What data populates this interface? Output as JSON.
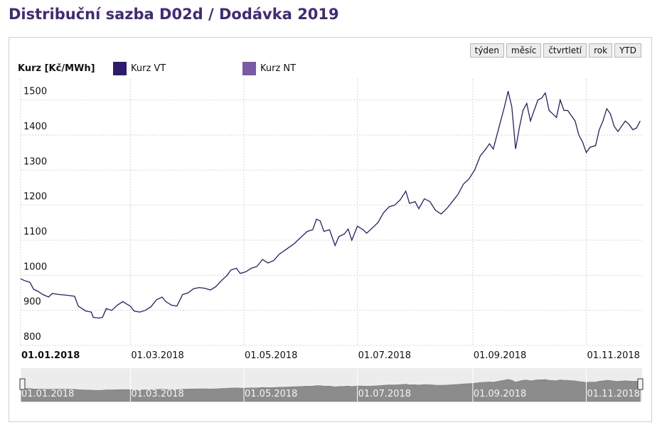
{
  "page": {
    "title": "Distribuční sazba D02d / Dodávka 2019"
  },
  "range_buttons": [
    "týden",
    "měsíc",
    "čtvrtletí",
    "rok",
    "YTD"
  ],
  "colors": {
    "series_vt": "#2e1a6e",
    "series_nt": "#7a5aa8",
    "title": "#3f2a7a",
    "navigator": "#8c8c8c"
  },
  "chart_data": {
    "type": "line",
    "ylabel": "Kurz [Kč/MWh]",
    "ylim": [
      800,
      1560
    ],
    "y_ticks": [
      800,
      900,
      1000,
      1100,
      1200,
      1300,
      1400,
      1500
    ],
    "x_range": [
      "2018-01-01",
      "2018-12-01"
    ],
    "x_ticks": [
      "01.01.2018",
      "01.03.2018",
      "01.05.2018",
      "01.07.2018",
      "01.09.2018",
      "01.11.2018"
    ],
    "grid": true,
    "legend": [
      "Kurz VT",
      "Kurz NT"
    ],
    "series": [
      {
        "name": "Kurz VT",
        "points": [
          [
            "2018-01-01",
            990
          ],
          [
            "2018-01-03",
            985
          ],
          [
            "2018-01-06",
            980
          ],
          [
            "2018-01-08",
            960
          ],
          [
            "2018-01-10",
            955
          ],
          [
            "2018-01-13",
            945
          ],
          [
            "2018-01-16",
            938
          ],
          [
            "2018-01-18",
            948
          ],
          [
            "2018-01-22",
            945
          ],
          [
            "2018-01-26",
            943
          ],
          [
            "2018-01-30",
            940
          ],
          [
            "2018-02-01",
            912
          ],
          [
            "2018-02-05",
            898
          ],
          [
            "2018-02-08",
            895
          ],
          [
            "2018-02-09",
            880
          ],
          [
            "2018-02-12",
            878
          ],
          [
            "2018-02-14",
            880
          ],
          [
            "2018-02-16",
            905
          ],
          [
            "2018-02-19",
            900
          ],
          [
            "2018-02-22",
            915
          ],
          [
            "2018-02-25",
            925
          ],
          [
            "2018-02-27",
            918
          ],
          [
            "2018-03-01",
            912
          ],
          [
            "2018-03-03",
            898
          ],
          [
            "2018-03-06",
            895
          ],
          [
            "2018-03-09",
            900
          ],
          [
            "2018-03-12",
            910
          ],
          [
            "2018-03-15",
            930
          ],
          [
            "2018-03-18",
            938
          ],
          [
            "2018-03-20",
            925
          ],
          [
            "2018-03-23",
            915
          ],
          [
            "2018-03-26",
            912
          ],
          [
            "2018-03-29",
            945
          ],
          [
            "2018-04-01",
            950
          ],
          [
            "2018-04-04",
            962
          ],
          [
            "2018-04-07",
            965
          ],
          [
            "2018-04-10",
            963
          ],
          [
            "2018-04-13",
            958
          ],
          [
            "2018-04-16",
            968
          ],
          [
            "2018-04-19",
            985
          ],
          [
            "2018-04-22",
            1000
          ],
          [
            "2018-04-24",
            1015
          ],
          [
            "2018-04-27",
            1020
          ],
          [
            "2018-04-29",
            1005
          ],
          [
            "2018-05-02",
            1010
          ],
          [
            "2018-05-05",
            1020
          ],
          [
            "2018-05-08",
            1025
          ],
          [
            "2018-05-11",
            1045
          ],
          [
            "2018-05-14",
            1035
          ],
          [
            "2018-05-17",
            1042
          ],
          [
            "2018-05-20",
            1060
          ],
          [
            "2018-05-24",
            1075
          ],
          [
            "2018-05-28",
            1090
          ],
          [
            "2018-06-01",
            1110
          ],
          [
            "2018-06-04",
            1125
          ],
          [
            "2018-06-07",
            1130
          ],
          [
            "2018-06-09",
            1160
          ],
          [
            "2018-06-11",
            1155
          ],
          [
            "2018-06-13",
            1125
          ],
          [
            "2018-06-16",
            1130
          ],
          [
            "2018-06-19",
            1085
          ],
          [
            "2018-06-21",
            1110
          ],
          [
            "2018-06-24",
            1118
          ],
          [
            "2018-06-26",
            1132
          ],
          [
            "2018-06-28",
            1100
          ],
          [
            "2018-07-01",
            1140
          ],
          [
            "2018-07-04",
            1130
          ],
          [
            "2018-07-06",
            1120
          ],
          [
            "2018-07-09",
            1135
          ],
          [
            "2018-07-12",
            1150
          ],
          [
            "2018-07-15",
            1178
          ],
          [
            "2018-07-18",
            1195
          ],
          [
            "2018-07-21",
            1200
          ],
          [
            "2018-07-24",
            1215
          ],
          [
            "2018-07-27",
            1240
          ],
          [
            "2018-07-29",
            1205
          ],
          [
            "2018-08-01",
            1210
          ],
          [
            "2018-08-03",
            1190
          ],
          [
            "2018-08-06",
            1218
          ],
          [
            "2018-08-09",
            1210
          ],
          [
            "2018-08-12",
            1185
          ],
          [
            "2018-08-15",
            1175
          ],
          [
            "2018-08-18",
            1190
          ],
          [
            "2018-08-21",
            1210
          ],
          [
            "2018-08-24",
            1230
          ],
          [
            "2018-08-27",
            1260
          ],
          [
            "2018-08-30",
            1275
          ],
          [
            "2018-09-02",
            1300
          ],
          [
            "2018-09-05",
            1340
          ],
          [
            "2018-09-08",
            1360
          ],
          [
            "2018-09-10",
            1375
          ],
          [
            "2018-09-12",
            1360
          ],
          [
            "2018-09-14",
            1400
          ],
          [
            "2018-09-16",
            1440
          ],
          [
            "2018-09-18",
            1480
          ],
          [
            "2018-09-20",
            1525
          ],
          [
            "2018-09-22",
            1480
          ],
          [
            "2018-09-24",
            1360
          ],
          [
            "2018-09-26",
            1420
          ],
          [
            "2018-09-28",
            1470
          ],
          [
            "2018-09-30",
            1490
          ],
          [
            "2018-10-02",
            1440
          ],
          [
            "2018-10-04",
            1470
          ],
          [
            "2018-10-06",
            1500
          ],
          [
            "2018-10-08",
            1505
          ],
          [
            "2018-10-10",
            1520
          ],
          [
            "2018-10-12",
            1470
          ],
          [
            "2018-10-14",
            1460
          ],
          [
            "2018-10-16",
            1450
          ],
          [
            "2018-10-18",
            1500
          ],
          [
            "2018-10-20",
            1470
          ],
          [
            "2018-10-22",
            1470
          ],
          [
            "2018-10-24",
            1455
          ],
          [
            "2018-10-26",
            1440
          ],
          [
            "2018-10-28",
            1400
          ],
          [
            "2018-10-30",
            1380
          ],
          [
            "2018-11-01",
            1350
          ],
          [
            "2018-11-03",
            1365
          ],
          [
            "2018-11-06",
            1370
          ],
          [
            "2018-11-08",
            1415
          ],
          [
            "2018-11-10",
            1440
          ],
          [
            "2018-11-12",
            1475
          ],
          [
            "2018-11-14",
            1460
          ],
          [
            "2018-11-16",
            1425
          ],
          [
            "2018-11-18",
            1410
          ],
          [
            "2018-11-20",
            1425
          ],
          [
            "2018-11-22",
            1440
          ],
          [
            "2018-11-24",
            1430
          ],
          [
            "2018-11-26",
            1415
          ],
          [
            "2018-11-28",
            1420
          ],
          [
            "2018-11-30",
            1440
          ]
        ]
      }
    ],
    "navigator_ticks": [
      "01.01.2018",
      "01.03.2018",
      "01.05.2018",
      "01.07.2018",
      "01.09.2018",
      "01.11.2018"
    ]
  }
}
